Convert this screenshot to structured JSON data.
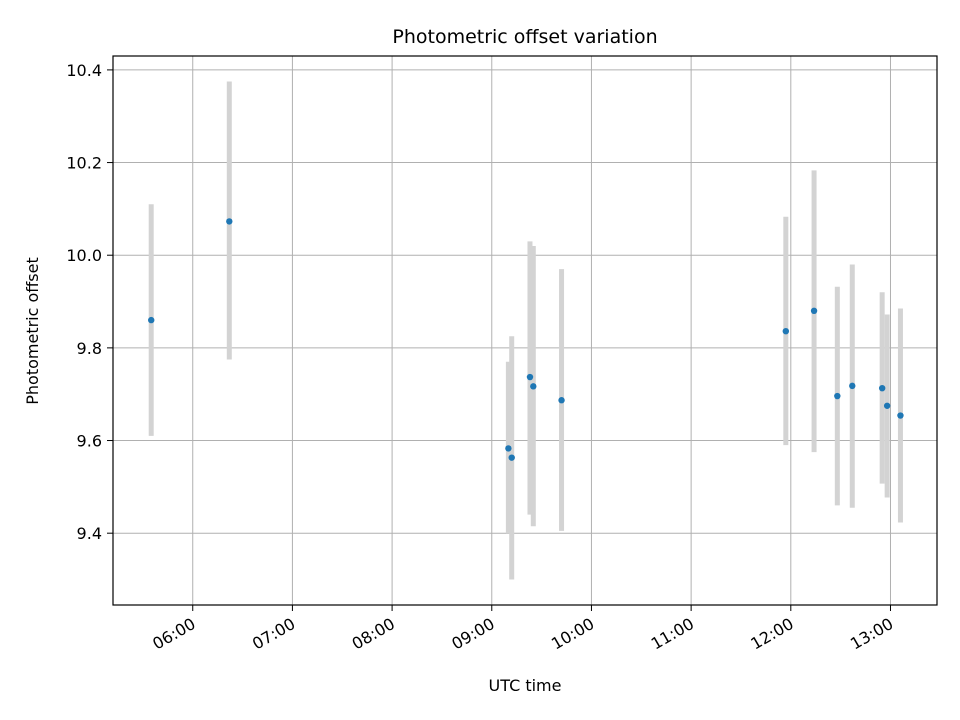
{
  "chart_data": {
    "type": "scatter",
    "title": "Photometric offset variation",
    "xlabel": "UTC time",
    "ylabel": "Photometric offset",
    "x_ticks": [
      "06:00",
      "07:00",
      "08:00",
      "09:00",
      "10:00",
      "11:00",
      "12:00",
      "13:00"
    ],
    "y_ticks": [
      "9.4",
      "9.6",
      "9.8",
      "10.0",
      "10.2",
      "10.4"
    ],
    "xlim": [
      "05:12",
      "13:28"
    ],
    "ylim": [
      9.245,
      10.43
    ],
    "grid": true,
    "colors": {
      "point": "#1f77b4",
      "errorbar": "#d3d3d3",
      "grid": "#b0b0b0"
    },
    "points": [
      {
        "time": "05:35",
        "value": 9.86,
        "low": 9.61,
        "high": 10.11
      },
      {
        "time": "06:22",
        "value": 10.073,
        "low": 9.775,
        "high": 10.375
      },
      {
        "time": "09:10",
        "value": 9.583,
        "low": 9.4,
        "high": 9.77
      },
      {
        "time": "09:12",
        "value": 9.563,
        "low": 9.3,
        "high": 9.825
      },
      {
        "time": "09:23",
        "value": 9.737,
        "low": 9.44,
        "high": 10.03
      },
      {
        "time": "09:25",
        "value": 9.717,
        "low": 9.415,
        "high": 10.02
      },
      {
        "time": "09:42",
        "value": 9.687,
        "low": 9.405,
        "high": 9.97
      },
      {
        "time": "11:57",
        "value": 9.836,
        "low": 9.59,
        "high": 10.083
      },
      {
        "time": "12:14",
        "value": 9.88,
        "low": 9.575,
        "high": 10.183
      },
      {
        "time": "12:28",
        "value": 9.696,
        "low": 9.46,
        "high": 9.932
      },
      {
        "time": "12:37",
        "value": 9.718,
        "low": 9.455,
        "high": 9.98
      },
      {
        "time": "12:55",
        "value": 9.713,
        "low": 9.507,
        "high": 9.92
      },
      {
        "time": "12:58",
        "value": 9.675,
        "low": 9.477,
        "high": 9.872
      },
      {
        "time": "13:06",
        "value": 9.654,
        "low": 9.423,
        "high": 9.885
      }
    ]
  }
}
